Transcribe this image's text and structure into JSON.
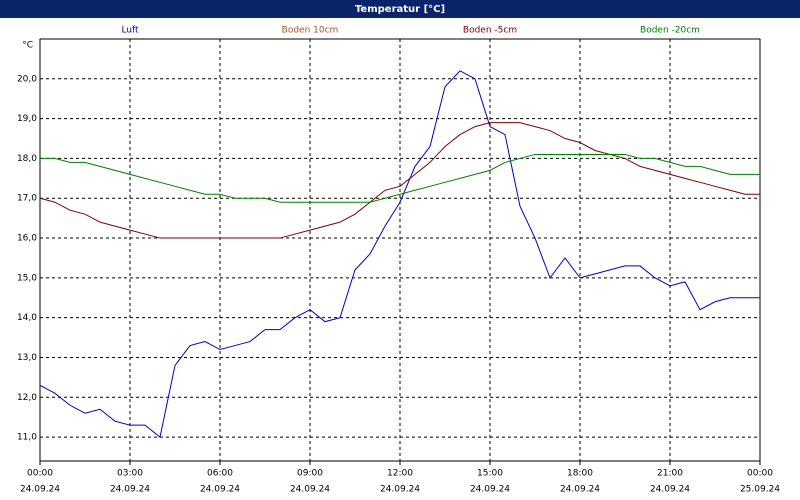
{
  "chart_data": {
    "type": "line",
    "title": "Temperatur [°C]",
    "y_unit": "°C",
    "x": [
      0,
      0.5,
      1,
      1.5,
      2,
      2.5,
      3,
      3.5,
      4,
      4.5,
      5,
      5.5,
      6,
      6.5,
      7,
      7.5,
      8,
      8.5,
      9,
      9.5,
      10,
      10.5,
      11,
      11.5,
      12,
      12.5,
      13,
      13.5,
      14,
      14.5,
      15,
      15.5,
      16,
      16.5,
      17,
      17.5,
      18,
      18.5,
      19,
      19.5,
      20,
      20.5,
      21,
      21.5,
      22,
      22.5,
      23,
      23.5,
      24
    ],
    "xlim": [
      0,
      24
    ],
    "xticks": [
      {
        "value": 0,
        "label": "00:00"
      },
      {
        "value": 3,
        "label": "03:00"
      },
      {
        "value": 6,
        "label": "06:00"
      },
      {
        "value": 9,
        "label": "09:00"
      },
      {
        "value": 12,
        "label": "12:00"
      },
      {
        "value": 15,
        "label": "15:00"
      },
      {
        "value": 18,
        "label": "18:00"
      },
      {
        "value": 21,
        "label": "21:00"
      },
      {
        "value": 24,
        "label": "00:00"
      }
    ],
    "xtick_dates": [
      "24.09.24",
      "24.09.24",
      "24.09.24",
      "24.09.24",
      "24.09.24",
      "24.09.24",
      "24.09.24",
      "24.09.24",
      "25.09.24"
    ],
    "ylim": [
      10.4,
      21.0
    ],
    "yticks": [
      {
        "value": 11,
        "label": "11,0"
      },
      {
        "value": 12,
        "label": "12,0"
      },
      {
        "value": 13,
        "label": "13,0"
      },
      {
        "value": 14,
        "label": "14,0"
      },
      {
        "value": 15,
        "label": "15,0"
      },
      {
        "value": 16,
        "label": "16,0"
      },
      {
        "value": 17,
        "label": "17,0"
      },
      {
        "value": 18,
        "label": "18,0"
      },
      {
        "value": 19,
        "label": "19,0"
      },
      {
        "value": 20,
        "label": "20,0"
      }
    ],
    "grid": true,
    "series": [
      {
        "name": "Luft",
        "color": "#0000c8",
        "values": [
          12.3,
          12.1,
          11.8,
          11.6,
          11.7,
          11.4,
          11.3,
          11.3,
          11.0,
          12.8,
          13.3,
          13.4,
          13.2,
          13.3,
          13.4,
          13.7,
          13.7,
          14.0,
          14.2,
          13.9,
          14.0,
          15.2,
          15.6,
          16.3,
          16.9,
          17.8,
          18.3,
          19.8,
          20.2,
          20.0,
          18.8,
          18.6,
          16.8,
          16.0,
          15.0,
          15.5,
          15.0,
          15.1,
          15.2,
          15.3,
          15.3,
          15.0,
          14.8,
          14.9,
          14.2,
          14.4,
          14.5,
          14.5,
          14.5
        ]
      },
      {
        "name": "Boden 10cm",
        "color": "#a0522d",
        "values": [
          null,
          null,
          null,
          null,
          null,
          null,
          null,
          null,
          null,
          null,
          null,
          null,
          null,
          null,
          null,
          null,
          null,
          null,
          null,
          null,
          null,
          null,
          null,
          null,
          null,
          null,
          null,
          null,
          null,
          null,
          null,
          null,
          null,
          null,
          null,
          null,
          null,
          null,
          null,
          null,
          null,
          null,
          null,
          null,
          null,
          null,
          null,
          null,
          null
        ]
      },
      {
        "name": "Boden -5cm",
        "color": "#800000",
        "values": [
          17.0,
          16.9,
          16.7,
          16.6,
          16.4,
          16.3,
          16.2,
          16.1,
          16.0,
          16.0,
          16.0,
          16.0,
          16.0,
          16.0,
          16.0,
          16.0,
          16.0,
          16.1,
          16.2,
          16.3,
          16.4,
          16.6,
          16.9,
          17.2,
          17.3,
          17.6,
          17.9,
          18.3,
          18.6,
          18.8,
          18.9,
          18.9,
          18.9,
          18.8,
          18.7,
          18.5,
          18.4,
          18.2,
          18.1,
          18.0,
          17.8,
          17.7,
          17.6,
          17.5,
          17.4,
          17.3,
          17.2,
          17.1,
          17.1
        ]
      },
      {
        "name": "Boden -20cm",
        "color": "#008000",
        "values": [
          18.0,
          18.0,
          17.9,
          17.9,
          17.8,
          17.7,
          17.6,
          17.5,
          17.4,
          17.3,
          17.2,
          17.1,
          17.1,
          17.0,
          17.0,
          17.0,
          16.9,
          16.9,
          16.9,
          16.9,
          16.9,
          16.9,
          16.9,
          17.0,
          17.1,
          17.2,
          17.3,
          17.4,
          17.5,
          17.6,
          17.7,
          17.9,
          18.0,
          18.1,
          18.1,
          18.1,
          18.1,
          18.1,
          18.1,
          18.1,
          18.0,
          18.0,
          17.9,
          17.8,
          17.8,
          17.7,
          17.6,
          17.6,
          17.6
        ]
      }
    ]
  }
}
